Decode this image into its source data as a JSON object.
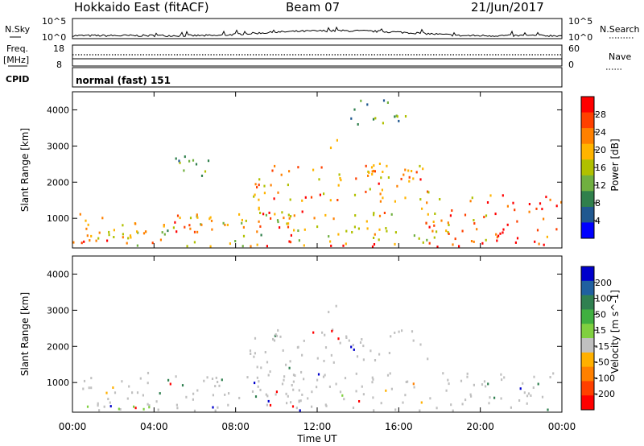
{
  "header": {
    "title": "Hokkaido East (fitACF)",
    "beam": "Beam 07",
    "date": "21/Jun/2017"
  },
  "top_panels": {
    "nsky_label": "N.Sky",
    "nsky_ticks": [
      "10^5",
      "10^0"
    ],
    "nsearch_label": "N.Search",
    "nsearch_ticks": [
      "10^5",
      "10^0"
    ],
    "freq_label_1": "Freq.",
    "freq_label_2": "[MHz]",
    "freq_ticks": [
      "18",
      "8"
    ],
    "nave_label": "Nave",
    "nave_ticks": [
      "60",
      "0"
    ],
    "cpid_label": "CPID",
    "cpid_value": "normal (fast) 151"
  },
  "chart_data": [
    {
      "type": "heatmap",
      "panel": "power",
      "ylabel": "Slant Range [km]",
      "xlabel": "Time UT",
      "x_ticks": [
        "00:00",
        "04:00",
        "08:00",
        "12:00",
        "16:00",
        "20:00",
        "00:00"
      ],
      "xlim_hours": [
        0,
        24
      ],
      "y_ticks": [
        1000,
        2000,
        3000,
        4000
      ],
      "ylim": [
        180,
        4500
      ],
      "colorbar": {
        "label": "Power [dB]",
        "ticks": [
          "28",
          "24",
          "20",
          "16",
          "12",
          "8",
          "4"
        ],
        "colors": [
          "#ff0000",
          "#ff4000",
          "#ff8000",
          "#ffb400",
          "#b0c000",
          "#70b040",
          "#30804c",
          "#205890",
          "#0000ff"
        ]
      },
      "regions": [
        {
          "t0": 0.0,
          "t1": 11.0,
          "r0": 250,
          "r1": 1200,
          "level": 0.55
        },
        {
          "t0": 0.3,
          "t1": 4.0,
          "r0": 300,
          "r1": 650,
          "level": 0.9
        },
        {
          "t0": 3.0,
          "t1": 8.5,
          "r0": 650,
          "r1": 1150,
          "level": 0.75
        },
        {
          "t0": 9.0,
          "t1": 11.5,
          "r0": 250,
          "r1": 1800,
          "level": 0.85
        },
        {
          "t0": 8.5,
          "t1": 17.5,
          "r0": 1500,
          "r1": 2500,
          "level": 0.7
        },
        {
          "t0": 11.0,
          "t1": 18.5,
          "r0": 300,
          "r1": 1200,
          "level": 0.6
        },
        {
          "t0": 14.0,
          "t1": 17.5,
          "r0": 2000,
          "r1": 2600,
          "level": 0.8
        },
        {
          "t0": 17.0,
          "t1": 20.5,
          "r0": 400,
          "r1": 1600,
          "level": 0.7
        },
        {
          "t0": 20.0,
          "t1": 24.0,
          "r0": 250,
          "r1": 1700,
          "level": 0.92
        },
        {
          "t0": 11.5,
          "t1": 13.0,
          "r0": 2950,
          "r1": 3200,
          "level": 0.8
        },
        {
          "t0": 12.0,
          "t1": 20.0,
          "r0": 220,
          "r1": 400,
          "level": 0.95
        },
        {
          "t0": 5.0,
          "t1": 8.0,
          "r0": 2200,
          "r1": 2800,
          "level": 0.4
        },
        {
          "t0": 13.0,
          "t1": 16.5,
          "r0": 3600,
          "r1": 4300,
          "level": 0.3
        }
      ]
    },
    {
      "type": "heatmap",
      "panel": "velocity",
      "ylabel": "Slant Range [km]",
      "xlabel": "Time UT",
      "x_ticks": [
        "00:00",
        "04:00",
        "08:00",
        "12:00",
        "16:00",
        "20:00",
        "00:00"
      ],
      "xlim_hours": [
        0,
        24
      ],
      "y_ticks": [
        1000,
        2000,
        3000,
        4000
      ],
      "ylim": [
        180,
        4500
      ],
      "colorbar": {
        "label": "Velocity [m s^-1]",
        "ticks": [
          "200",
          "100",
          "50",
          "15",
          "-15",
          "-50",
          "-100",
          "-200"
        ],
        "colors": [
          "#0000cc",
          "#2060a0",
          "#308050",
          "#40b040",
          "#80d040",
          "#c0c0c0",
          "#ffb000",
          "#ff8000",
          "#ff4000",
          "#ff0000"
        ]
      },
      "regions": [
        {
          "t0": 0.0,
          "t1": 24.0,
          "r0": 250,
          "r1": 1300,
          "kind": "gray"
        },
        {
          "t0": 8.5,
          "t1": 17.5,
          "r0": 1500,
          "r1": 2500,
          "kind": "gray"
        },
        {
          "t0": 9.0,
          "t1": 11.5,
          "r0": 250,
          "r1": 1800,
          "kind": "gray"
        },
        {
          "t0": 12.0,
          "t1": 13.5,
          "r0": 600,
          "r1": 720,
          "kind": "green"
        },
        {
          "t0": 0.0,
          "t1": 4.0,
          "r0": 220,
          "r1": 400,
          "kind": "green"
        },
        {
          "t0": 16.0,
          "t1": 17.5,
          "r0": 850,
          "r1": 1000,
          "kind": "orange"
        },
        {
          "t0": 11.5,
          "t1": 13.0,
          "r0": 2950,
          "r1": 3150,
          "kind": "gray"
        }
      ]
    }
  ]
}
